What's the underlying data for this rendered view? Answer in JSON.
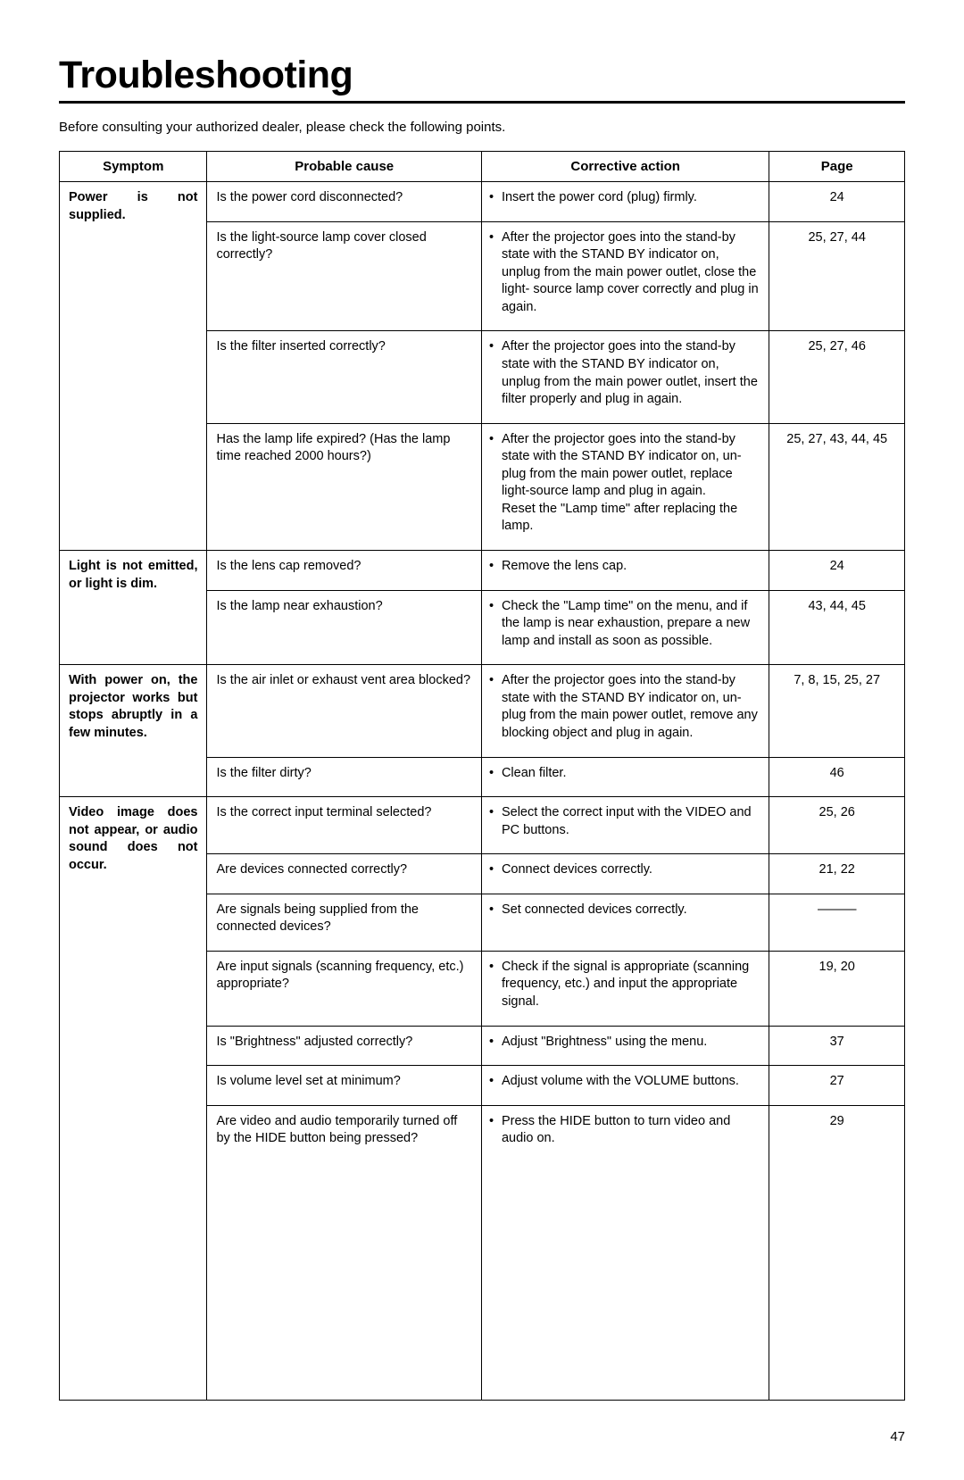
{
  "title": "Troubleshooting",
  "intro": "Before consulting your authorized dealer, please check the following points.",
  "headers": {
    "symptom": "Symptom",
    "cause": "Probable cause",
    "action": "Corrective action",
    "page": "Page"
  },
  "symptoms": {
    "s1": "Power is not supplied.",
    "s2": "Light is not emitted, or light is dim.",
    "s3": "With power on, the projector works but stops abruptly in a few minutes.",
    "s4": "Video image does not appear, or audio sound does not occur."
  },
  "rows": {
    "r1": {
      "cause": "Is the power cord disconnected?",
      "action": "Insert the power cord (plug) firmly.",
      "page": "24"
    },
    "r2": {
      "cause": "Is the light-source lamp cover closed correctly?",
      "action": "After the projector goes into the stand-by state with the STAND BY indicator on, unplug from the main power outlet, close the light- source lamp cover correctly and plug in again.",
      "page": "25, 27, 44"
    },
    "r3": {
      "cause": "Is the filter inserted correctly?",
      "action": "After the projector goes into the stand-by state with the STAND BY indicator on, unplug from the main power outlet, insert the filter properly and plug in again.",
      "page": "25, 27, 46"
    },
    "r4": {
      "cause": "Has the lamp life expired? (Has the lamp time reached 2000 hours?)",
      "action": "After the projector goes into the stand-by state with the STAND BY indicator on, un-plug from the main power outlet, replace light-source lamp and plug in again.\nReset the \"Lamp time\" after replacing the lamp.",
      "page": "25, 27, 43, 44, 45"
    },
    "r5": {
      "cause": "Is the lens cap removed?",
      "action": "Remove the lens cap.",
      "page": "24"
    },
    "r6": {
      "cause": "Is the lamp near exhaustion?",
      "action": "Check the \"Lamp time\" on the menu, and if the lamp is near exhaustion, prepare a new lamp and install as soon as possible.",
      "page": "43, 44, 45"
    },
    "r7": {
      "cause": "Is the air inlet or exhaust vent area blocked?",
      "action": "After the projector goes into the stand-by state with the STAND BY indicator on, un-plug from the main power outlet, remove any blocking object and plug in again.",
      "page": "7, 8, 15, 25, 27"
    },
    "r8": {
      "cause": "Is the filter dirty?",
      "action": "Clean filter.",
      "page": "46"
    },
    "r9": {
      "cause": "Is the correct input terminal selected?",
      "action": "Select the correct input with the VIDEO and PC buttons.",
      "page": "25, 26"
    },
    "r10": {
      "cause": "Are devices connected correctly?",
      "action": "Connect devices correctly.",
      "page": "21, 22"
    },
    "r11": {
      "cause": "Are signals being supplied from the connected devices?",
      "action": "Set connected devices correctly.",
      "page": "———"
    },
    "r12": {
      "cause": "Are input signals (scanning frequency, etc.) appropriate?",
      "action": "Check if the signal is appropriate (scanning frequency, etc.) and input the appropriate signal.",
      "page": "19, 20"
    },
    "r13": {
      "cause": "Is \"Brightness\" adjusted correctly?",
      "action": "Adjust \"Brightness\" using the menu.",
      "page": "37"
    },
    "r14": {
      "cause": "Is volume level set at minimum?",
      "action": "Adjust volume with the VOLUME buttons.",
      "page": "27"
    },
    "r15": {
      "cause": "Are video and audio temporarily turned off by the HIDE button being pressed?",
      "action": "Press the HIDE button to turn video and audio on.",
      "page": "29"
    }
  },
  "pageNumber": "47"
}
